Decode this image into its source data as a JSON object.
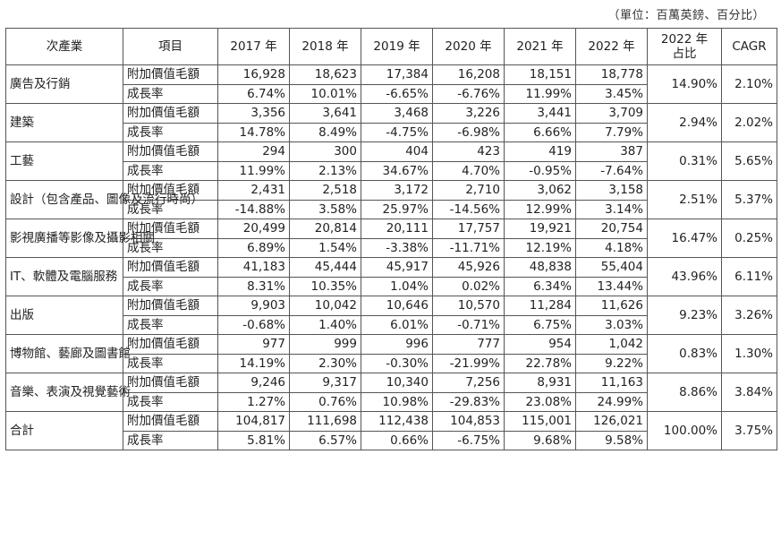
{
  "unit_note": "（單位：百萬英鎊、百分比）",
  "headers": [
    "次產業",
    "項目",
    "2017 年",
    "2018 年",
    "2019 年",
    "2020 年",
    "2021 年",
    "2022 年",
    "2022 年\n占比",
    "CAGR"
  ],
  "header_2022_share": [
    "2022 年",
    "占比"
  ],
  "metric_labels": {
    "value": "附加價值毛額",
    "growth": "成長率"
  },
  "rows": [
    {
      "category": "廣告及行銷",
      "value": [
        "16,928",
        "18,623",
        "17,384",
        "16,208",
        "18,151",
        "18,778"
      ],
      "growth": [
        "6.74%",
        "10.01%",
        "-6.65%",
        "-6.76%",
        "11.99%",
        "3.45%"
      ],
      "share": "14.90%",
      "cagr": "2.10%"
    },
    {
      "category": "建築",
      "value": [
        "3,356",
        "3,641",
        "3,468",
        "3,226",
        "3,441",
        "3,709"
      ],
      "growth": [
        "14.78%",
        "8.49%",
        "-4.75%",
        "-6.98%",
        "6.66%",
        "7.79%"
      ],
      "share": "2.94%",
      "cagr": "2.02%"
    },
    {
      "category": "工藝",
      "value": [
        "294",
        "300",
        "404",
        "423",
        "419",
        "387"
      ],
      "growth": [
        "11.99%",
        "2.13%",
        "34.67%",
        "4.70%",
        "-0.95%",
        "-7.64%"
      ],
      "share": "0.31%",
      "cagr": "5.65%"
    },
    {
      "category": "設計（包含產品、圖像及流行時尚）",
      "value": [
        "2,431",
        "2,518",
        "3,172",
        "2,710",
        "3,062",
        "3,158"
      ],
      "growth": [
        "-14.88%",
        "3.58%",
        "25.97%",
        "-14.56%",
        "12.99%",
        "3.14%"
      ],
      "share": "2.51%",
      "cagr": "5.37%"
    },
    {
      "category": "影視廣播等影像及攝影相關",
      "value": [
        "20,499",
        "20,814",
        "20,111",
        "17,757",
        "19,921",
        "20,754"
      ],
      "growth": [
        "6.89%",
        "1.54%",
        "-3.38%",
        "-11.71%",
        "12.19%",
        "4.18%"
      ],
      "share": "16.47%",
      "cagr": "0.25%"
    },
    {
      "category": "IT、軟體及電腦服務",
      "value": [
        "41,183",
        "45,444",
        "45,917",
        "45,926",
        "48,838",
        "55,404"
      ],
      "growth": [
        "8.31%",
        "10.35%",
        "1.04%",
        "0.02%",
        "6.34%",
        "13.44%"
      ],
      "share": "43.96%",
      "cagr": "6.11%"
    },
    {
      "category": "出版",
      "value": [
        "9,903",
        "10,042",
        "10,646",
        "10,570",
        "11,284",
        "11,626"
      ],
      "growth": [
        "-0.68%",
        "1.40%",
        "6.01%",
        "-0.71%",
        "6.75%",
        "3.03%"
      ],
      "share": "9.23%",
      "cagr": "3.26%"
    },
    {
      "category": "博物館、藝廊及圖書館",
      "value": [
        "977",
        "999",
        "996",
        "777",
        "954",
        "1,042"
      ],
      "growth": [
        "14.19%",
        "2.30%",
        "-0.30%",
        "-21.99%",
        "22.78%",
        "9.22%"
      ],
      "share": "0.83%",
      "cagr": "1.30%"
    },
    {
      "category": "音樂、表演及視覺藝術",
      "value": [
        "9,246",
        "9,317",
        "10,340",
        "7,256",
        "8,931",
        "11,163"
      ],
      "growth": [
        "1.27%",
        "0.76%",
        "10.98%",
        "-29.83%",
        "23.08%",
        "24.99%"
      ],
      "share": "8.86%",
      "cagr": "3.84%"
    },
    {
      "category": "合計",
      "value": [
        "104,817",
        "111,698",
        "112,438",
        "104,853",
        "115,001",
        "126,021"
      ],
      "growth": [
        "5.81%",
        "6.57%",
        "0.66%",
        "-6.75%",
        "9.68%",
        "9.58%"
      ],
      "share": "100.00%",
      "cagr": "3.75%"
    }
  ]
}
